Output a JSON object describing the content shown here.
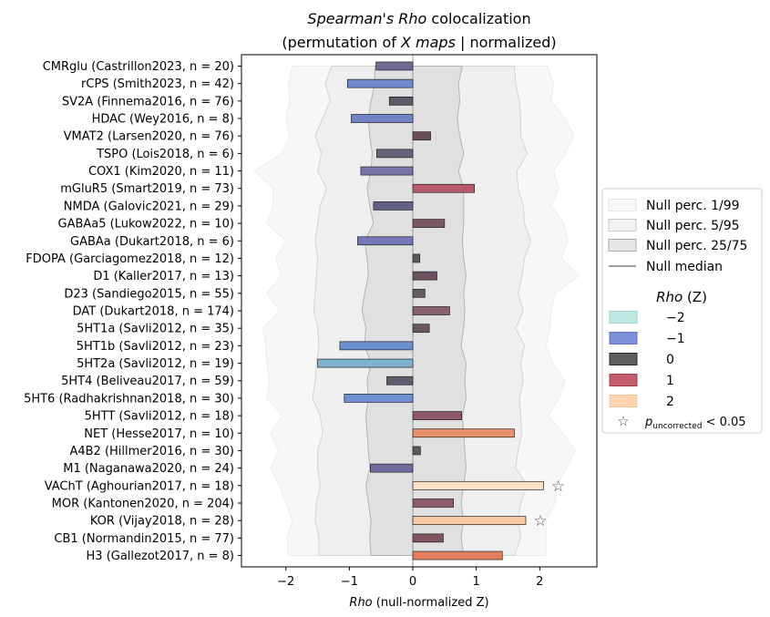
{
  "chart_data": {
    "type": "bar",
    "orientation": "horizontal",
    "title_line1_italic": "Spearman's Rho",
    "title_line1_rest": " colocalization",
    "title_line2_pre": "(permutation of ",
    "title_line2_italic": "X maps",
    "title_line2_post": " | normalized)",
    "xlabel_italic": "Rho",
    "xlabel_rest": " (null-normalized Z)",
    "xlim": [
      -2.7,
      2.9
    ],
    "xticks": [
      -2,
      -1,
      0,
      1,
      2
    ],
    "xtick_labels": [
      "−2",
      "−1",
      "0",
      "1",
      "2"
    ],
    "categories": [
      "CMRglu (Castrillon2023, n = 20)",
      "rCPS (Smith2023, n = 42)",
      "SV2A (Finnema2016, n = 76)",
      "HDAC (Wey2016, n = 8)",
      "VMAT2 (Larsen2020, n = 76)",
      "TSPO (Lois2018, n = 6)",
      "COX1 (Kim2020, n = 11)",
      "mGluR5 (Smart2019, n = 73)",
      "NMDA (Galovic2021, n = 29)",
      "GABAa5 (Lukow2022, n = 10)",
      "GABAa (Dukart2018, n = 6)",
      "FDOPA (Garciagomez2018, n = 12)",
      "D1 (Kaller2017, n = 13)",
      "D23 (Sandiego2015, n = 55)",
      "DAT (Dukart2018, n = 174)",
      "5HT1a (Savli2012, n = 35)",
      "5HT1b (Savli2012, n = 23)",
      "5HT2a (Savli2012, n = 19)",
      "5HT4 (Beliveau2017, n = 59)",
      "5HT6 (Radhakrishnan2018, n = 30)",
      "5HTT (Savli2012, n = 18)",
      "NET (Hesse2017, n = 10)",
      "A4B2 (Hillmer2016, n = 30)",
      "M1 (Naganawa2020, n = 24)",
      "VAChT (Aghourian2017, n = 18)",
      "MOR (Kantonen2020, n = 204)",
      "KOR (Vijay2018, n = 28)",
      "CB1 (Normandin2015, n = 77)",
      "H3 (Gallezot2017, n = 8)"
    ],
    "values": [
      -0.58,
      -1.03,
      -0.37,
      -0.97,
      0.28,
      -0.57,
      -0.82,
      0.97,
      -0.62,
      0.5,
      -0.87,
      0.11,
      0.38,
      0.19,
      0.58,
      0.26,
      -1.15,
      -1.5,
      -0.41,
      -1.08,
      0.77,
      1.6,
      0.12,
      -0.67,
      2.06,
      0.64,
      1.78,
      0.48,
      1.41
    ],
    "significant": [
      false,
      false,
      false,
      false,
      false,
      false,
      false,
      false,
      false,
      false,
      false,
      false,
      false,
      false,
      false,
      false,
      false,
      false,
      false,
      false,
      false,
      false,
      false,
      false,
      true,
      false,
      true,
      false,
      false
    ],
    "colors": [
      "#6e6a94",
      "#6f8bce",
      "#5c5a66",
      "#7383c8",
      "#6b4f58",
      "#666378",
      "#7876a8",
      "#b85a6c",
      "#646281",
      "#7a5865",
      "#7477b8",
      "#5e5858",
      "#6c525e",
      "#665b62",
      "#87606c",
      "#685660",
      "#6b90d0",
      "#7fb1d3",
      "#625c70",
      "#6f8fd2",
      "#8e5866",
      "#e8916b",
      "#5c5858",
      "#6e6a9e",
      "#fde0c6",
      "#8a5b68",
      "#f8c9a4",
      "#80555f",
      "#e47e5e"
    ],
    "null_median": [
      0.62,
      0.62,
      0.55,
      0.68,
      0.68,
      0.66,
      0.7,
      0.7,
      0.64,
      0.7,
      0.75,
      0.7,
      0.7,
      0.72,
      0.66,
      0.68,
      0.66,
      0.7,
      0.6,
      0.7,
      0.68,
      0.72,
      0.66,
      0.68,
      0.7,
      0.66,
      0.62,
      0.66,
      0.7
    ],
    "null_p25_75": [
      [
        -0.6,
        0.78
      ],
      [
        -0.6,
        0.72
      ],
      [
        -0.66,
        0.74
      ],
      [
        -0.7,
        0.7
      ],
      [
        -0.68,
        0.74
      ],
      [
        -0.64,
        0.8
      ],
      [
        -0.66,
        0.72
      ],
      [
        -0.72,
        0.8
      ],
      [
        -0.68,
        0.8
      ],
      [
        -0.62,
        0.8
      ],
      [
        -0.76,
        0.78
      ],
      [
        -0.72,
        0.8
      ],
      [
        -0.7,
        0.84
      ],
      [
        -0.76,
        0.8
      ],
      [
        -0.8,
        0.82
      ],
      [
        -0.74,
        0.8
      ],
      [
        -0.76,
        0.76
      ],
      [
        -0.66,
        0.84
      ],
      [
        -0.72,
        0.82
      ],
      [
        -0.7,
        0.84
      ],
      [
        -0.74,
        0.78
      ],
      [
        -0.72,
        0.8
      ],
      [
        -0.7,
        0.82
      ],
      [
        -0.68,
        0.84
      ],
      [
        -0.74,
        0.8
      ],
      [
        -0.7,
        0.76
      ],
      [
        -0.66,
        0.8
      ],
      [
        -0.68,
        0.76
      ],
      [
        -0.66,
        0.8
      ]
    ],
    "null_p5_95": [
      [
        -1.28,
        1.6
      ],
      [
        -1.38,
        1.62
      ],
      [
        -1.3,
        1.68
      ],
      [
        -1.42,
        1.7
      ],
      [
        -1.54,
        1.7
      ],
      [
        -1.44,
        1.8
      ],
      [
        -1.5,
        1.64
      ],
      [
        -1.36,
        1.66
      ],
      [
        -1.46,
        1.74
      ],
      [
        -1.5,
        1.76
      ],
      [
        -1.54,
        1.86
      ],
      [
        -1.5,
        1.76
      ],
      [
        -1.52,
        1.72
      ],
      [
        -1.54,
        1.66
      ],
      [
        -1.56,
        1.74
      ],
      [
        -1.5,
        1.62
      ],
      [
        -1.48,
        1.76
      ],
      [
        -1.52,
        1.7
      ],
      [
        -1.54,
        1.74
      ],
      [
        -1.58,
        1.68
      ],
      [
        -1.46,
        1.7
      ],
      [
        -1.42,
        1.72
      ],
      [
        -1.5,
        1.66
      ],
      [
        -1.5,
        1.62
      ],
      [
        -1.46,
        1.8
      ],
      [
        -1.52,
        1.7
      ],
      [
        -1.54,
        1.66
      ],
      [
        -1.48,
        1.7
      ],
      [
        -1.48,
        1.6
      ]
    ],
    "null_p1_99": [
      [
        -1.9,
        2.12
      ],
      [
        -1.96,
        2.22
      ],
      [
        -1.94,
        2.18
      ],
      [
        -2.0,
        2.4
      ],
      [
        -1.94,
        2.54
      ],
      [
        -2.06,
        2.4
      ],
      [
        -2.5,
        2.22
      ],
      [
        -2.2,
        2.3
      ],
      [
        -2.2,
        2.18
      ],
      [
        -2.3,
        2.38
      ],
      [
        -2.0,
        2.44
      ],
      [
        -2.16,
        2.34
      ],
      [
        -2.08,
        2.62
      ],
      [
        -2.3,
        2.24
      ],
      [
        -2.1,
        2.18
      ],
      [
        -2.36,
        2.16
      ],
      [
        -2.32,
        2.1
      ],
      [
        -2.3,
        2.2
      ],
      [
        -2.26,
        2.4
      ],
      [
        -2.3,
        2.3
      ],
      [
        -2.06,
        2.14
      ],
      [
        -2.24,
        2.36
      ],
      [
        -2.12,
        2.56
      ],
      [
        -2.24,
        2.42
      ],
      [
        -2.1,
        2.28
      ],
      [
        -2.0,
        2.24
      ],
      [
        -1.9,
        2.1
      ],
      [
        -1.98,
        2.1
      ],
      [
        -1.96,
        2.1
      ]
    ],
    "legend": {
      "items": [
        {
          "label": "Null perc. 1/99",
          "kind": "patch",
          "fill": "#f8f8f8",
          "edge": "#e4e4e4"
        },
        {
          "label": "Null perc. 5/95",
          "kind": "patch",
          "fill": "#f1f1f1",
          "edge": "#c9c9c9"
        },
        {
          "label": "Null perc. 25/75",
          "kind": "patch",
          "fill": "#e6e6e6",
          "edge": "#a8a8a8"
        },
        {
          "label": "Null median",
          "kind": "line",
          "color": "#808080"
        }
      ],
      "title_italic": "Rho",
      "title_rest": " (Z)",
      "color_items": [
        {
          "label": "−2",
          "fill": "#bfe6e1",
          "edge": "#9ed6cf"
        },
        {
          "label": "−1",
          "fill": "#7d8fd8",
          "edge": "#5f74c8"
        },
        {
          "label": "0",
          "fill": "#5e5e5e",
          "edge": "#2a2a2a"
        },
        {
          "label": "1",
          "fill": "#c55d6c",
          "edge": "#a0404f"
        },
        {
          "label": "2",
          "fill": "#fdd3b0",
          "edge": "#f6c095"
        }
      ],
      "sig_pre": "p",
      "sig_sub": "uncorrected",
      "sig_post": " < 0.05",
      "sig_marker": "☆",
      "placement": "center-right"
    }
  }
}
